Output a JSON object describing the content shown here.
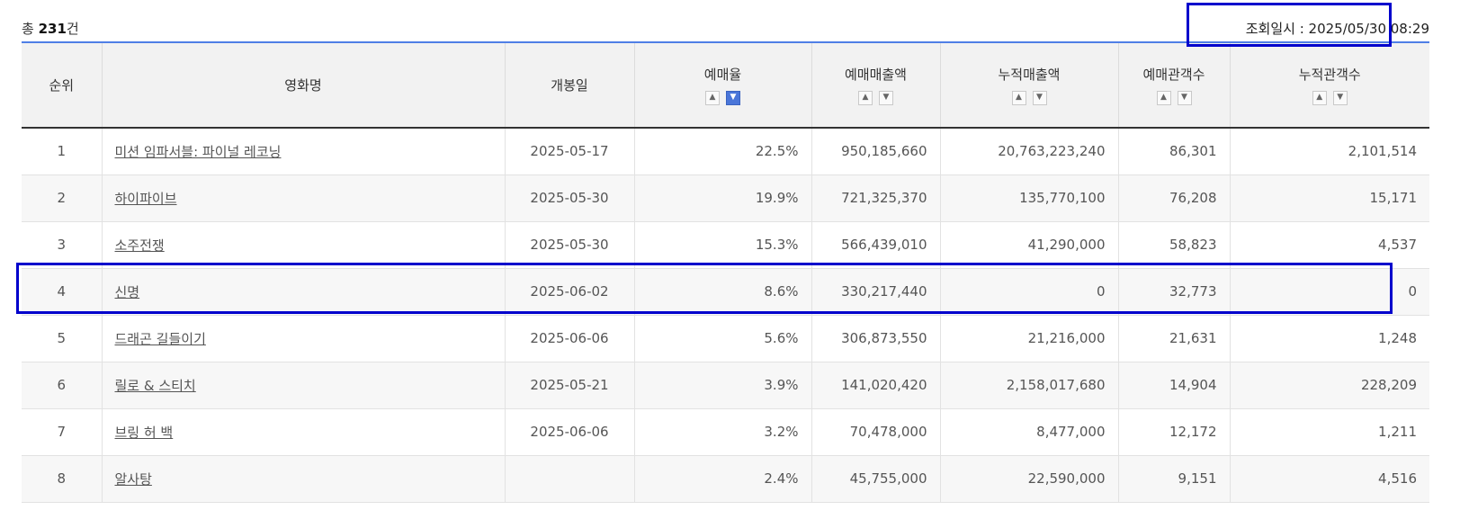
{
  "summary": {
    "prefix": "총 ",
    "count": "231",
    "suffix": "건"
  },
  "query_time": {
    "text": "조회일시 : 2025/05/30 08:29"
  },
  "table": {
    "headers": {
      "rank": "순위",
      "title": "영화명",
      "release": "개봉일",
      "rate": "예매율",
      "sales": "예매매출액",
      "cum_sales": "누적매출액",
      "audience": "예매관객수",
      "cum_audience": "누적관객수"
    },
    "sort_icons": {
      "up": "chevron-up-icon",
      "down": "chevron-down-icon",
      "active_column": "rate",
      "active_direction": "down"
    },
    "rows": [
      {
        "rank": "1",
        "title": "미션 임파서블: 파이널 레코닝",
        "release": "2025-05-17",
        "rate": "22.5%",
        "sales": "950,185,660",
        "cum_sales": "20,763,223,240",
        "audience": "86,301",
        "cum_audience": "2,101,514"
      },
      {
        "rank": "2",
        "title": "하이파이브",
        "release": "2025-05-30",
        "rate": "19.9%",
        "sales": "721,325,370",
        "cum_sales": "135,770,100",
        "audience": "76,208",
        "cum_audience": "15,171"
      },
      {
        "rank": "3",
        "title": "소주전쟁",
        "release": "2025-05-30",
        "rate": "15.3%",
        "sales": "566,439,010",
        "cum_sales": "41,290,000",
        "audience": "58,823",
        "cum_audience": "4,537"
      },
      {
        "rank": "4",
        "title": "신명",
        "release": "2025-06-02",
        "rate": "8.6%",
        "sales": "330,217,440",
        "cum_sales": "0",
        "audience": "32,773",
        "cum_audience": "0"
      },
      {
        "rank": "5",
        "title": "드래곤 길들이기",
        "release": "2025-06-06",
        "rate": "5.6%",
        "sales": "306,873,550",
        "cum_sales": "21,216,000",
        "audience": "21,631",
        "cum_audience": "1,248"
      },
      {
        "rank": "6",
        "title": "릴로 & 스티치",
        "release": "2025-05-21",
        "rate": "3.9%",
        "sales": "141,020,420",
        "cum_sales": "2,158,017,680",
        "audience": "14,904",
        "cum_audience": "228,209"
      },
      {
        "rank": "7",
        "title": "브링 허 백",
        "release": "2025-06-06",
        "rate": "3.2%",
        "sales": "70,478,000",
        "cum_sales": "8,477,000",
        "audience": "12,172",
        "cum_audience": "1,211"
      },
      {
        "rank": "8",
        "title": "알사탕",
        "release": "",
        "rate": "2.4%",
        "sales": "45,755,000",
        "cum_sales": "22,590,000",
        "audience": "9,151",
        "cum_audience": "4,516"
      }
    ]
  },
  "annotations": {
    "box_color": "#0000cc",
    "header_line_color": "#4f7fe6",
    "active_sort_color": "#4a76d9"
  }
}
